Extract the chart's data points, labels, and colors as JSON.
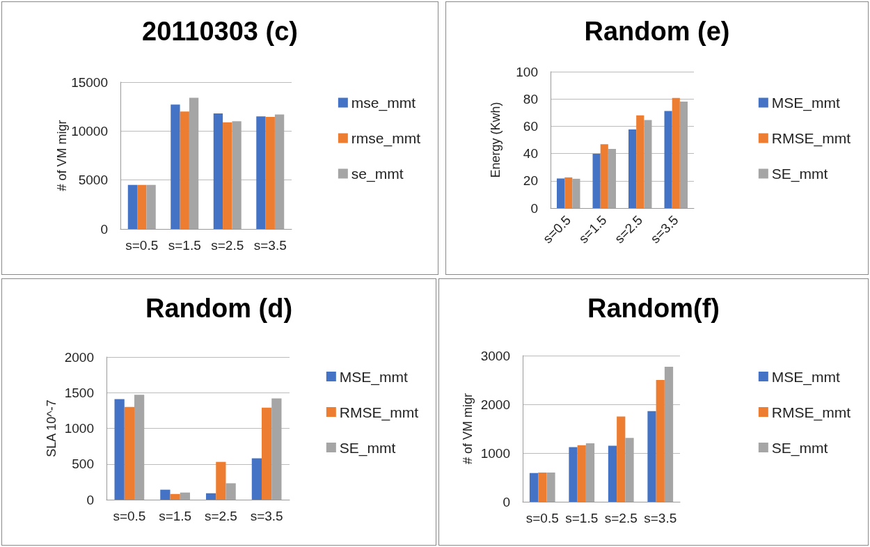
{
  "chart_data": [
    {
      "type": "bar",
      "title": "20110303 (c)",
      "ylabel": "# of VM migr",
      "categories": [
        "s=0.5",
        "s=1.5",
        "s=2.5",
        "s=3.5"
      ],
      "ylim": [
        0,
        15000
      ],
      "yticks": [
        0,
        5000,
        10000,
        15000
      ],
      "grid": "y",
      "legend": "right",
      "series": [
        {
          "name": "mse_mmt",
          "color": "#4472c4",
          "values": [
            4500,
            12700,
            11800,
            11500
          ]
        },
        {
          "name": "rmse_mmt",
          "color": "#ed7d31",
          "values": [
            4500,
            12000,
            10900,
            11450
          ]
        },
        {
          "name": "se_mmt",
          "color": "#a5a5a5",
          "values": [
            4500,
            13400,
            11000,
            11700
          ]
        }
      ]
    },
    {
      "type": "bar",
      "title": "Random (e)",
      "ylabel": "Energy (Kwh)",
      "categories": [
        "s=0.5",
        "s=1.5",
        "s=2.5",
        "s=3.5"
      ],
      "ylim": [
        0,
        100
      ],
      "yticks": [
        0,
        20,
        40,
        60,
        80,
        100
      ],
      "grid": "y",
      "legend": "right",
      "series": [
        {
          "name": "MSE_mmt",
          "color": "#4472c4",
          "values": [
            21.7,
            39.8,
            57.6,
            71.2
          ]
        },
        {
          "name": "RMSE_mmt",
          "color": "#ed7d31",
          "values": [
            22.5,
            46.8,
            68,
            80.8
          ]
        },
        {
          "name": "SE_mmt",
          "color": "#a5a5a5",
          "values": [
            21.5,
            43.4,
            64.6,
            78
          ]
        }
      ]
    },
    {
      "type": "bar",
      "title": "Random (d)",
      "ylabel": "SLA 10^-7",
      "categories": [
        "s=0.5",
        "s=1.5",
        "s=2.5",
        "s=3.5"
      ],
      "ylim": [
        0,
        2000
      ],
      "yticks": [
        0,
        500,
        1000,
        1500,
        2000
      ],
      "grid": "y",
      "legend": "right",
      "series": [
        {
          "name": "MSE_mmt",
          "color": "#4472c4",
          "values": [
            1410,
            140,
            90,
            580
          ]
        },
        {
          "name": "RMSE_mmt",
          "color": "#ed7d31",
          "values": [
            1300,
            80,
            530,
            1290
          ]
        },
        {
          "name": "SE_mmt",
          "color": "#a5a5a5",
          "values": [
            1470,
            100,
            230,
            1420
          ]
        }
      ]
    },
    {
      "type": "bar",
      "title": "Random(f)",
      "ylabel": "# of VM migr",
      "categories": [
        "s=0.5",
        "s=1.5",
        "s=2.5",
        "s=3.5"
      ],
      "ylim": [
        0,
        3000
      ],
      "yticks": [
        0,
        1000,
        2000,
        3000
      ],
      "grid": "y",
      "legend": "right",
      "series": [
        {
          "name": "MSE_mmt",
          "color": "#4472c4",
          "values": [
            590,
            1120,
            1150,
            1860
          ]
        },
        {
          "name": "RMSE_mmt",
          "color": "#ed7d31",
          "values": [
            600,
            1160,
            1750,
            2500
          ]
        },
        {
          "name": "SE_mmt",
          "color": "#a5a5a5",
          "values": [
            600,
            1200,
            1310,
            2770
          ]
        }
      ]
    }
  ]
}
